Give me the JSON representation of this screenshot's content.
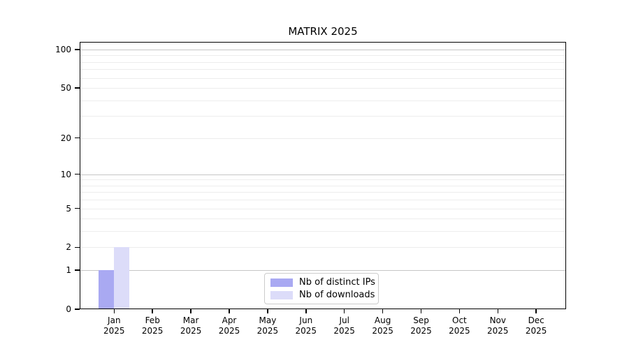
{
  "chart_data": {
    "type": "bar",
    "title": "MATRIX 2025",
    "categories": [
      "Jan",
      "Feb",
      "Mar",
      "Apr",
      "May",
      "Jun",
      "Jul",
      "Aug",
      "Sep",
      "Oct",
      "Nov",
      "Dec"
    ],
    "x_year_label": "2025",
    "series": [
      {
        "name": "Nb of distinct IPs",
        "key": "distinct-ips",
        "color": "#a9a9f2",
        "values": [
          1,
          0,
          0,
          0,
          0,
          0,
          0,
          0,
          0,
          0,
          0,
          0
        ]
      },
      {
        "name": "Nb of downloads",
        "key": "downloads",
        "color": "#dcdcf9",
        "values": [
          2,
          0,
          0,
          0,
          0,
          0,
          0,
          0,
          0,
          0,
          0,
          0
        ]
      }
    ],
    "yscale": "log1p",
    "ylim": [
      0,
      115
    ],
    "yticks": [
      0,
      1,
      2,
      5,
      10,
      20,
      50,
      100
    ],
    "grid_major_values": [
      1,
      10,
      100
    ],
    "grid_minor_values": [
      2,
      3,
      4,
      5,
      6,
      7,
      8,
      9,
      20,
      30,
      40,
      50,
      60,
      70,
      80,
      90
    ],
    "grid_major_color": "#c6c6c6",
    "grid_minor_color": "#ededed",
    "axis_color": "#000000",
    "legend_border_color": "#cccccc",
    "legend_position": "lower center",
    "grid": true
  }
}
